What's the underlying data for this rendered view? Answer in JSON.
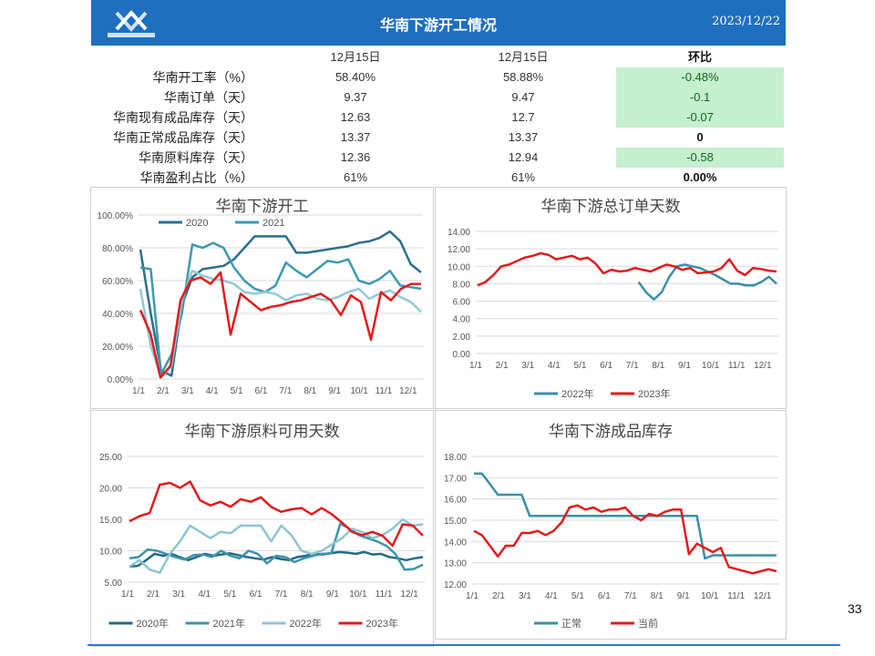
{
  "header": {
    "title": "华南下游开工情况",
    "date": "2023/12/22"
  },
  "table": {
    "columns": [
      "12月15日",
      "12月15日",
      "环比"
    ],
    "rows": [
      {
        "name": "华南开工率（%）",
        "v1": "58.40%",
        "v2": "58.88%",
        "diff": "-0.48%",
        "highlight": true
      },
      {
        "name": "华南订单（天）",
        "v1": "9.37",
        "v2": "9.47",
        "diff": "-0.1",
        "highlight": true
      },
      {
        "name": "华南现有成品库存（天）",
        "v1": "12.63",
        "v2": "12.7",
        "diff": "-0.07",
        "highlight": true
      },
      {
        "name": "华南正常成品库存（天）",
        "v1": "13.37",
        "v2": "13.37",
        "diff": "0",
        "highlight": false
      },
      {
        "name": "华南原料库存（天）",
        "v1": "12.36",
        "v2": "12.94",
        "diff": "-0.58",
        "highlight": true
      },
      {
        "name": "华南盈利占比（%）",
        "v1": "61%",
        "v2": "61%",
        "diff": "0.00%",
        "highlight": false
      }
    ]
  },
  "page_number": "33",
  "chart_data": [
    {
      "type": "line",
      "title": "华南下游开工",
      "ylim": [
        0,
        100
      ],
      "yticks": [
        "0.00%",
        "20.00%",
        "40.00%",
        "60.00%",
        "80.00%",
        "100.00%"
      ],
      "xticks": [
        "1/1",
        "2/1",
        "3/1",
        "4/1",
        "5/1",
        "6/1",
        "7/1",
        "8/1",
        "9/1",
        "10/1",
        "11/1",
        "12/1"
      ],
      "legend_position": "top",
      "series": [
        {
          "name": "2020",
          "color": "#2c6f8e",
          "values": [
            79,
            40,
            5,
            2,
            45,
            62,
            67,
            68,
            69,
            73,
            80,
            87,
            87,
            87,
            87,
            77,
            77,
            78,
            79,
            80,
            81,
            83,
            84,
            86,
            90,
            84,
            70,
            65
          ]
        },
        {
          "name": "2021",
          "color": "#3b9aae",
          "values": [
            68,
            67,
            3,
            15,
            40,
            82,
            80,
            83,
            80,
            68,
            60,
            55,
            53,
            57,
            71,
            66,
            62,
            67,
            72,
            71,
            73,
            60,
            58,
            61,
            66,
            57,
            56,
            55
          ]
        },
        {
          "name": "",
          "color": "#93c9d6",
          "values": [
            55,
            20,
            1,
            8,
            48,
            66,
            63,
            61,
            60,
            58,
            53,
            52,
            53,
            52,
            48,
            51,
            52,
            49,
            48,
            50,
            53,
            55,
            49,
            52,
            54,
            50,
            47,
            41
          ]
        },
        {
          "name": "",
          "color": "#e31a1c",
          "values": [
            42,
            28,
            1,
            8,
            48,
            60,
            62,
            58,
            65,
            27,
            52,
            47,
            42,
            44,
            45,
            47,
            48,
            50,
            52,
            48,
            39,
            51,
            47,
            24,
            53,
            48,
            55,
            58,
            58
          ]
        }
      ]
    },
    {
      "type": "line",
      "title": "华南下游总订单天数",
      "ylim": [
        0,
        14
      ],
      "yticks": [
        "0.00",
        "2.00",
        "4.00",
        "6.00",
        "8.00",
        "10.00",
        "12.00",
        "14.00"
      ],
      "xticks": [
        "1/1",
        "2/1",
        "3/1",
        "4/1",
        "5/1",
        "6/1",
        "7/1",
        "8/1",
        "9/1",
        "10/1",
        "11/1",
        "12/1"
      ],
      "legend_position": "bottom",
      "series": [
        {
          "name": "2022年",
          "color": "#3a8fa8",
          "values": [
            null,
            null,
            null,
            null,
            null,
            null,
            null,
            null,
            null,
            null,
            null,
            null,
            null,
            null,
            null,
            null,
            null,
            null,
            null,
            null,
            null,
            8.2,
            7,
            6.2,
            7,
            8.8,
            10,
            10.2,
            10,
            9.8,
            9.4,
            9,
            8.5,
            8,
            8,
            7.8,
            7.8,
            8.2,
            8.8,
            8
          ]
        },
        {
          "name": "2023年",
          "color": "#e31a1c",
          "values": [
            7.8,
            8.2,
            9,
            10,
            10.2,
            10.6,
            11,
            11.2,
            11.5,
            11.3,
            10.8,
            11,
            11.2,
            10.8,
            11,
            10.3,
            9.2,
            9.6,
            9.4,
            9.5,
            9.8,
            9.6,
            9.4,
            9.8,
            10.2,
            10,
            9.6,
            9.8,
            9.2,
            9.3,
            9.4,
            9.8,
            10.8,
            9.5,
            9,
            9.8,
            9.7,
            9.5,
            9.4
          ]
        }
      ]
    },
    {
      "type": "line",
      "title": "华南下游原料可用天数",
      "ylim": [
        5,
        25
      ],
      "yticks": [
        "5.00",
        "10.00",
        "15.00",
        "20.00",
        "25.00"
      ],
      "xticks": [
        "1/1",
        "2/1",
        "3/1",
        "4/1",
        "5/1",
        "6/1",
        "7/1",
        "8/1",
        "9/1",
        "10/1",
        "11/1",
        "12/1"
      ],
      "legend_position": "bottom",
      "series": [
        {
          "name": "2020年",
          "color": "#236a88",
          "values": [
            7.5,
            7.6,
            8.5,
            9.5,
            9.2,
            9.5,
            9,
            8.5,
            9,
            9.5,
            9.2,
            9.4,
            9.6,
            9.3,
            9,
            8.8,
            8.6,
            9,
            8.7,
            8.5,
            9,
            9.2,
            9.5,
            9.4,
            9.6,
            9.8,
            9.7,
            9.5,
            9.8,
            9.4,
            9.5,
            9,
            8.8,
            8.5,
            8.8,
            9
          ]
        },
        {
          "name": "2021年",
          "color": "#3d93ab",
          "values": [
            8.8,
            9,
            10.2,
            10,
            9.5,
            9,
            8.6,
            9.3,
            9.4,
            9,
            10,
            9.2,
            8.8,
            10,
            9.5,
            8,
            9.2,
            9,
            8.2,
            8.8,
            9.2,
            9.5,
            9.6,
            14.3,
            13.5,
            12.5,
            12,
            11.5,
            10.8,
            9.5,
            7,
            7.1,
            7.8
          ]
        },
        {
          "name": "2022年",
          "color": "#8cc5d4",
          "values": [
            7.5,
            8.5,
            7,
            6.5,
            9.5,
            11.5,
            14,
            13,
            12,
            13,
            12.8,
            14,
            14,
            14,
            11.5,
            14,
            12.5,
            10,
            9.5,
            10,
            11,
            12,
            13.5,
            13,
            12,
            12.5,
            13.5,
            15,
            14,
            14.2
          ]
        },
        {
          "name": "2023年",
          "color": "#e31a1c",
          "values": [
            14.7,
            15.5,
            16,
            20.5,
            20.8,
            20,
            21,
            18,
            17.2,
            17.8,
            17,
            18.2,
            17.8,
            18.5,
            17,
            16.2,
            16.6,
            16.8,
            15.8,
            16.8,
            15.8,
            14.5,
            13,
            12.5,
            13,
            12.4,
            10.8,
            14.2,
            14,
            12.4
          ]
        }
      ]
    },
    {
      "type": "line",
      "title": "华南下游成品库存",
      "ylim": [
        12,
        18
      ],
      "yticks": [
        "12.00",
        "13.00",
        "14.00",
        "15.00",
        "16.00",
        "17.00",
        "18.00"
      ],
      "xticks": [
        "1/1",
        "2/1",
        "3/1",
        "4/1",
        "5/1",
        "6/1",
        "7/1",
        "8/1",
        "9/1",
        "10/1",
        "11/1",
        "12/1"
      ],
      "legend_position": "bottom",
      "series": [
        {
          "name": "正常",
          "color": "#3a8fa8",
          "values": [
            17.2,
            17.2,
            16.7,
            16.2,
            16.2,
            16.2,
            16.2,
            15.2,
            15.2,
            15.2,
            15.2,
            15.2,
            15.2,
            15.2,
            15.2,
            15.2,
            15.2,
            15.2,
            15.2,
            15.2,
            15.2,
            15.2,
            15.2,
            15.2,
            15.2,
            15.2,
            15.2,
            15.2,
            15.2,
            13.2,
            13.35,
            13.35,
            13.35,
            13.35,
            13.35,
            13.35,
            13.35,
            13.35,
            13.35
          ]
        },
        {
          "name": "当前",
          "color": "#e31a1c",
          "values": [
            14.5,
            14.3,
            13.8,
            13.3,
            13.8,
            13.8,
            14.4,
            14.4,
            14.5,
            14.3,
            14.5,
            14.9,
            15.6,
            15.7,
            15.5,
            15.6,
            15.4,
            15.5,
            15.5,
            15.6,
            15.2,
            15.0,
            15.3,
            15.2,
            15.4,
            15.5,
            15.5,
            13.4,
            13.9,
            13.7,
            13.5,
            13.7,
            12.8,
            12.7,
            12.6,
            12.5,
            12.6,
            12.7,
            12.6
          ]
        }
      ]
    }
  ]
}
